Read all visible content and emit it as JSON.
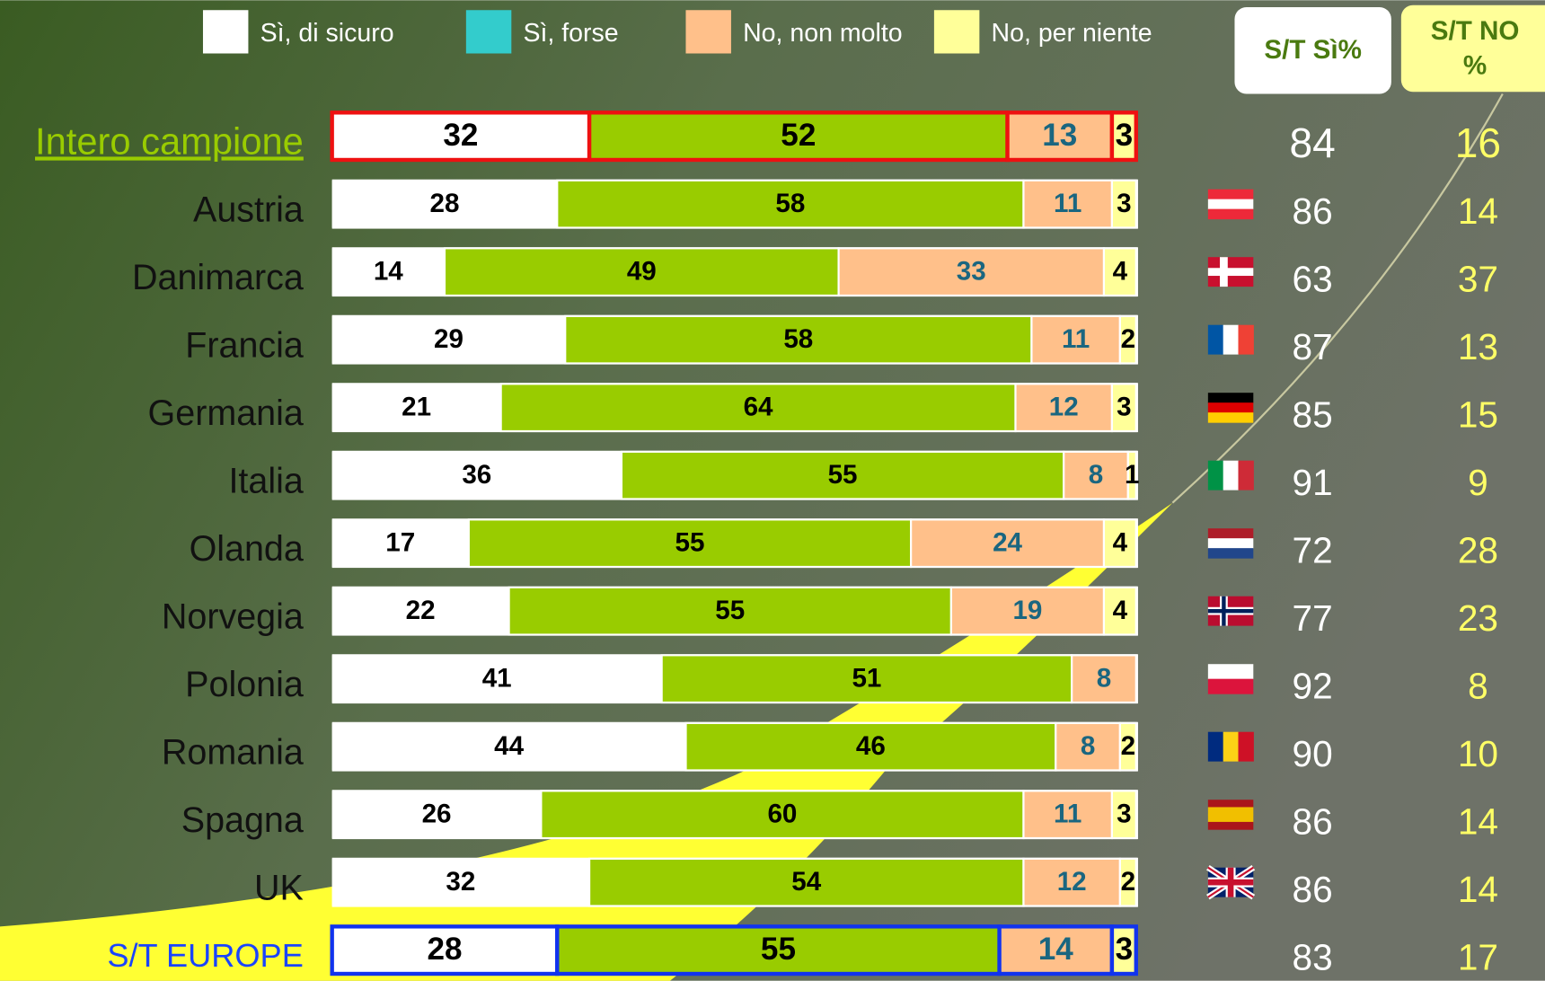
{
  "chart_data": {
    "type": "bar",
    "orientation": "horizontal",
    "stacked": true,
    "xlim": [
      0,
      100
    ],
    "categories": [
      "Intero campione",
      "Austria",
      "Danimarca",
      "Francia",
      "Germania",
      "Italia",
      "Olanda",
      "Norvegia",
      "Polonia",
      "Romania",
      "Spagna",
      "UK",
      "S/T EUROPE"
    ],
    "series": [
      {
        "name": "Sì, di sicuro",
        "color": "#ffffff",
        "legend_color": "#ffffff",
        "values": [
          32,
          28,
          14,
          29,
          21,
          36,
          17,
          22,
          41,
          44,
          26,
          32,
          28
        ]
      },
      {
        "name": "Sì, forse",
        "color": "#99cc00",
        "legend_color": "#33cccc",
        "values": [
          52,
          58,
          49,
          58,
          64,
          55,
          55,
          55,
          51,
          46,
          60,
          54,
          55
        ]
      },
      {
        "name": "No, non molto",
        "color": "#ffc08a",
        "legend_color": "#ffc08a",
        "values": [
          13,
          11,
          33,
          11,
          12,
          8,
          24,
          19,
          8,
          8,
          11,
          12,
          14
        ]
      },
      {
        "name": "No, per niente",
        "color": "#ffff99",
        "legend_color": "#ffff99",
        "values": [
          3,
          3,
          4,
          2,
          3,
          1,
          4,
          4,
          null,
          2,
          3,
          2,
          3
        ]
      }
    ],
    "columns": [
      {
        "name": "S/T Sì%",
        "values": [
          84,
          86,
          63,
          87,
          85,
          91,
          72,
          77,
          92,
          90,
          86,
          86,
          83
        ]
      },
      {
        "name": "S/T NO %",
        "values": [
          16,
          14,
          37,
          13,
          15,
          9,
          28,
          23,
          8,
          10,
          14,
          14,
          17
        ]
      }
    ]
  }
}
